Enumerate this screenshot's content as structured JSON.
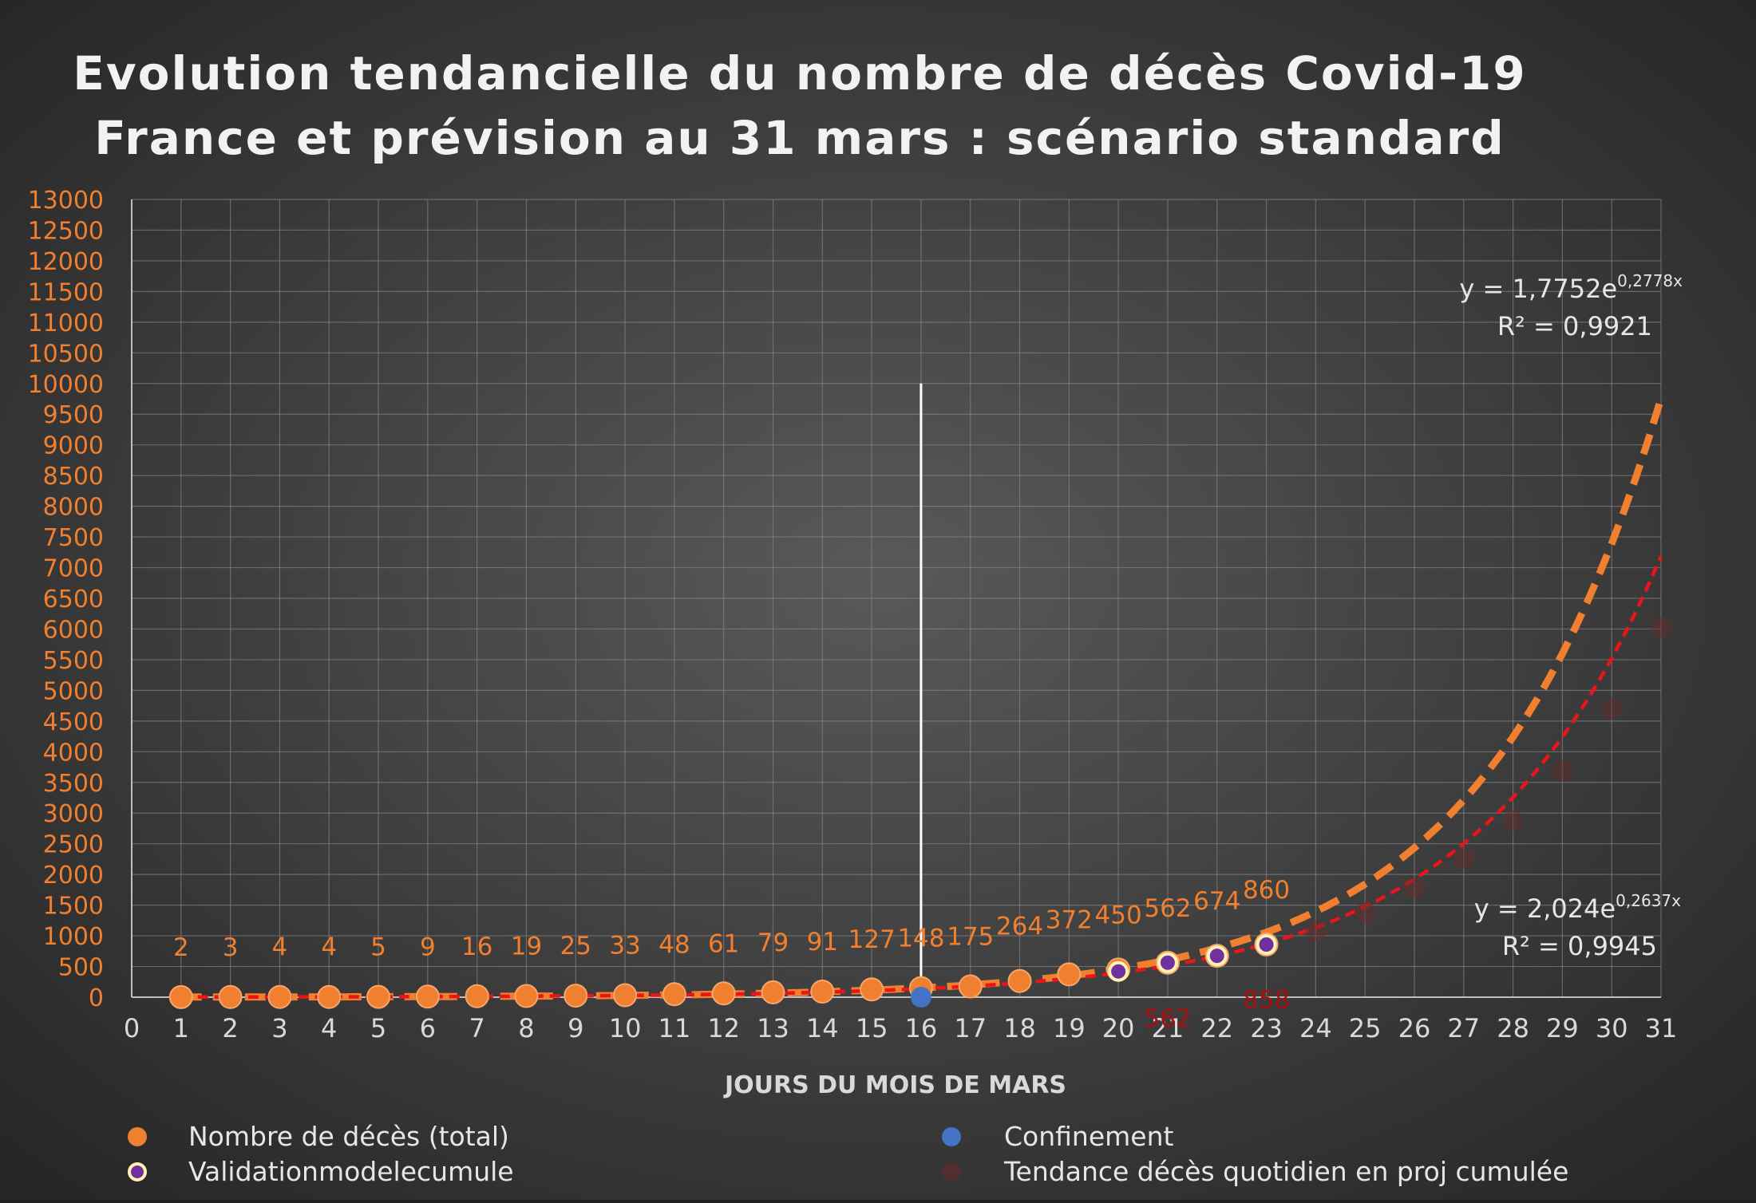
{
  "chart_data": {
    "type": "scatter",
    "title": [
      "Evolution tendancielle du nombre de décès Covid-19",
      "France et prévision au 31 mars : scénario standard"
    ],
    "xlabel": "JOURS DU MOIS DE MARS",
    "ylabel": "",
    "xlim": [
      0,
      31
    ],
    "ylim": [
      0,
      13000
    ],
    "x_ticks": [
      0,
      1,
      2,
      3,
      4,
      5,
      6,
      7,
      8,
      9,
      10,
      11,
      12,
      13,
      14,
      15,
      16,
      17,
      18,
      19,
      20,
      21,
      22,
      23,
      24,
      25,
      26,
      27,
      28,
      29,
      30,
      31
    ],
    "y_ticks": [
      0,
      500,
      1000,
      1500,
      2000,
      2500,
      3000,
      3500,
      4000,
      4500,
      5000,
      5500,
      6000,
      6500,
      7000,
      7500,
      8000,
      8500,
      9000,
      9500,
      10000,
      10500,
      11000,
      11500,
      12000,
      12500,
      13000
    ],
    "grid": true,
    "legend_position": "bottom",
    "series": [
      {
        "name": "Nombre de décès (total)",
        "color": "#f07f2f",
        "x": [
          1,
          2,
          3,
          4,
          5,
          6,
          7,
          8,
          9,
          10,
          11,
          12,
          13,
          14,
          15,
          16,
          17,
          18,
          19,
          20,
          21,
          22,
          23
        ],
        "y": [
          2,
          3,
          4,
          4,
          5,
          9,
          16,
          19,
          25,
          33,
          48,
          61,
          79,
          91,
          127,
          148,
          175,
          264,
          372,
          450,
          562,
          674,
          860
        ],
        "labels": [
          "2",
          "3",
          "4",
          "4",
          "5",
          "9",
          "16",
          "19",
          "25",
          "33",
          "48",
          "61",
          "79",
          "91",
          "127",
          "148",
          "175",
          "264",
          "372",
          "450",
          "562",
          "674",
          "860"
        ]
      },
      {
        "name": "Confinement",
        "color": "#4472c4",
        "x": [
          16
        ],
        "y": [
          0
        ]
      },
      {
        "name": "Validationmodelecumule",
        "color": "#7030a0",
        "x": [
          20,
          21,
          22,
          23
        ],
        "y": [
          420,
          562,
          674,
          858
        ],
        "labels": [
          "",
          "562",
          "",
          "858"
        ]
      },
      {
        "name": "Tendance décès quotidien en proj cumulée",
        "color": "#6b2a2a",
        "x": [
          24,
          25,
          26,
          27,
          28,
          29,
          30,
          31
        ],
        "y": [
          1080,
          1380,
          1780,
          2260,
          2880,
          3680,
          4700,
          6020
        ]
      }
    ],
    "trendlines": [
      {
        "a": 1.7752,
        "b": 0.2778,
        "equation_prefix": "y = 1,7752e",
        "equation_exp": "0,2778x",
        "r2": "R² = 0,9921"
      },
      {
        "a": 2.024,
        "b": 0.2637,
        "equation_prefix": "y = 2,024e",
        "equation_exp": "0,2637x",
        "r2": "R² = 0,9945"
      }
    ],
    "confinement_line": {
      "x": 16,
      "y_top": 10000
    }
  }
}
